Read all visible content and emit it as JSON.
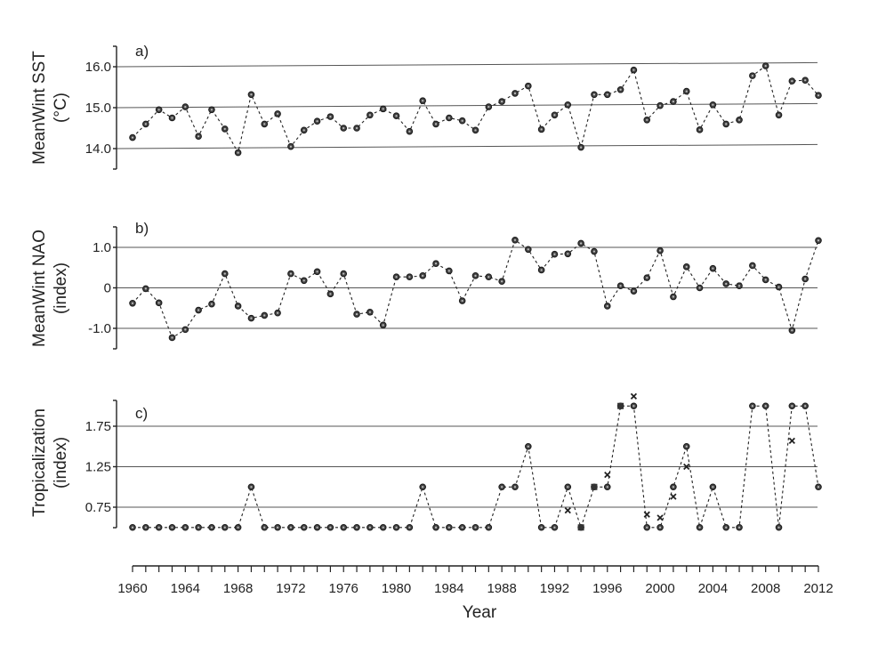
{
  "chart_data": [
    {
      "type": "line",
      "panel_label": "a)",
      "ylabel_line1": "MeanWint SST",
      "ylabel_line2": "(°C)",
      "yticks": [
        14.0,
        15.0,
        16.0
      ],
      "ytick_labels": [
        "14.0",
        "15.0",
        "16.0"
      ],
      "ylim": [
        13.5,
        16.5
      ],
      "x": [
        1960,
        1961,
        1962,
        1963,
        1964,
        1965,
        1966,
        1967,
        1968,
        1969,
        1970,
        1971,
        1972,
        1973,
        1974,
        1975,
        1976,
        1977,
        1978,
        1979,
        1980,
        1981,
        1982,
        1983,
        1984,
        1985,
        1986,
        1987,
        1988,
        1989,
        1990,
        1991,
        1992,
        1993,
        1994,
        1995,
        1996,
        1997,
        1998,
        1999,
        2000,
        2001,
        2002,
        2003,
        2004,
        2005,
        2006,
        2007,
        2008,
        2009,
        2010,
        2011,
        2012
      ],
      "series": [
        {
          "marker": "circle",
          "values": [
            14.27,
            14.6,
            14.95,
            14.75,
            15.02,
            14.3,
            14.95,
            14.48,
            13.9,
            15.32,
            14.6,
            14.85,
            14.05,
            14.45,
            14.67,
            14.78,
            14.5,
            14.5,
            14.82,
            14.97,
            14.8,
            14.42,
            15.17,
            14.6,
            14.75,
            14.68,
            14.45,
            15.02,
            15.15,
            15.35,
            15.53,
            14.47,
            14.82,
            15.07,
            14.03,
            15.32,
            15.32,
            15.44,
            15.92,
            14.7,
            15.05,
            15.15,
            15.4,
            14.46,
            15.07,
            14.6,
            14.7,
            15.78,
            16.02,
            14.82,
            15.65,
            15.67,
            15.3
          ]
        }
      ],
      "trend_lines": [
        {
          "x": [
            1960,
            2012
          ],
          "y": [
            14.0,
            14.1
          ]
        },
        {
          "x": [
            1960,
            2012
          ],
          "y": [
            15.0,
            15.1
          ]
        },
        {
          "x": [
            1960,
            2012
          ],
          "y": [
            16.0,
            16.1
          ]
        }
      ]
    },
    {
      "type": "line",
      "panel_label": "b)",
      "ylabel_line1": "MeanWint NAO",
      "ylabel_line2": "(index)",
      "yticks": [
        -1.0,
        0,
        1.0
      ],
      "ytick_labels": [
        "-1.0",
        "0",
        "1.0"
      ],
      "ylim": [
        -1.5,
        1.5
      ],
      "gridlines": [
        -1.0,
        0,
        1.0
      ],
      "x": [
        1960,
        1961,
        1962,
        1963,
        1964,
        1965,
        1966,
        1967,
        1968,
        1969,
        1970,
        1971,
        1972,
        1973,
        1974,
        1975,
        1976,
        1977,
        1978,
        1979,
        1980,
        1981,
        1982,
        1983,
        1984,
        1985,
        1986,
        1987,
        1988,
        1989,
        1990,
        1991,
        1992,
        1993,
        1994,
        1995,
        1996,
        1997,
        1998,
        1999,
        2000,
        2001,
        2002,
        2003,
        2004,
        2005,
        2006,
        2007,
        2008,
        2009,
        2010,
        2011,
        2012
      ],
      "series": [
        {
          "marker": "circle",
          "values": [
            -0.38,
            -0.02,
            -0.37,
            -1.23,
            -1.03,
            -0.55,
            -0.4,
            0.35,
            -0.45,
            -0.75,
            -0.68,
            -0.62,
            0.35,
            0.18,
            0.4,
            -0.15,
            0.35,
            -0.65,
            -0.6,
            -0.92,
            0.27,
            0.27,
            0.3,
            0.6,
            0.42,
            -0.32,
            0.3,
            0.27,
            0.16,
            1.18,
            0.95,
            0.44,
            0.83,
            0.84,
            1.1,
            0.9,
            -0.45,
            0.05,
            -0.08,
            0.25,
            0.92,
            -0.22,
            0.52,
            0.0,
            0.48,
            0.1,
            0.05,
            0.55,
            0.2,
            0.02,
            -1.05,
            0.22,
            1.17
          ]
        }
      ]
    },
    {
      "type": "line",
      "panel_label": "c)",
      "ylabel_line1": "Tropicalization",
      "ylabel_line2": "(index)",
      "yticks": [
        0.75,
        1.25,
        1.75
      ],
      "ytick_labels": [
        "0.75",
        "1.25",
        "1.75"
      ],
      "ylim": [
        0.5,
        2.1
      ],
      "gridlines": [
        0.75,
        1.25,
        1.75
      ],
      "x": [
        1960,
        1961,
        1962,
        1963,
        1964,
        1965,
        1966,
        1967,
        1968,
        1969,
        1970,
        1971,
        1972,
        1973,
        1974,
        1975,
        1976,
        1977,
        1978,
        1979,
        1980,
        1981,
        1982,
        1983,
        1984,
        1985,
        1986,
        1987,
        1988,
        1989,
        1990,
        1991,
        1992,
        1993,
        1994,
        1995,
        1996,
        1997,
        1998,
        1999,
        2000,
        2001,
        2002,
        2003,
        2004,
        2005,
        2006,
        2007,
        2008,
        2009,
        2010,
        2011,
        2012
      ],
      "series": [
        {
          "marker": "circle",
          "values": [
            0.5,
            0.5,
            0.5,
            0.5,
            0.5,
            0.5,
            0.5,
            0.5,
            0.5,
            1.0,
            0.5,
            0.5,
            0.5,
            0.5,
            0.5,
            0.5,
            0.5,
            0.5,
            0.5,
            0.5,
            0.5,
            0.5,
            1.0,
            0.5,
            0.5,
            0.5,
            0.5,
            0.5,
            1.0,
            1.0,
            1.5,
            0.5,
            0.5,
            1.0,
            0.5,
            1.0,
            1.0,
            2.0,
            2.0,
            0.5,
            0.5,
            1.0,
            1.5,
            0.5,
            1.0,
            0.5,
            0.5,
            2.0,
            2.0,
            0.5,
            2.0,
            2.0,
            1.0
          ]
        }
      ],
      "extra_markers": [
        {
          "marker": "x",
          "x": 1993,
          "y": 0.71
        },
        {
          "marker": "x",
          "x": 1996,
          "y": 1.15
        },
        {
          "marker": "x",
          "x": 1998,
          "y": 2.12
        },
        {
          "marker": "x",
          "x": 1999,
          "y": 0.66
        },
        {
          "marker": "x",
          "x": 2000,
          "y": 0.62
        },
        {
          "marker": "x",
          "x": 2001,
          "y": 0.88
        },
        {
          "marker": "x",
          "x": 2002,
          "y": 1.25
        },
        {
          "marker": "x",
          "x": 2010,
          "y": 1.57
        },
        {
          "marker": "square",
          "x": 1994,
          "y": 0.5
        },
        {
          "marker": "square",
          "x": 1995,
          "y": 1.0
        },
        {
          "marker": "square",
          "x": 1997,
          "y": 2.0
        }
      ]
    }
  ],
  "x_axis": {
    "label": "Year",
    "min": 1960,
    "max": 2012,
    "labeled_ticks": [
      1960,
      1964,
      1968,
      1972,
      1976,
      1980,
      1984,
      1988,
      1992,
      1996,
      2000,
      2004,
      2008,
      2012
    ],
    "tick_labels": [
      "1960",
      "1964",
      "1968",
      "1972",
      "1976",
      "1980",
      "1984",
      "1988",
      "1992",
      "1996",
      "2000",
      "2004",
      "2008",
      "2012"
    ]
  },
  "colors": {
    "ink": "#222222",
    "grid": "#555555",
    "marker_fill": "#444444",
    "marker_stroke": "#1a1a1a"
  }
}
